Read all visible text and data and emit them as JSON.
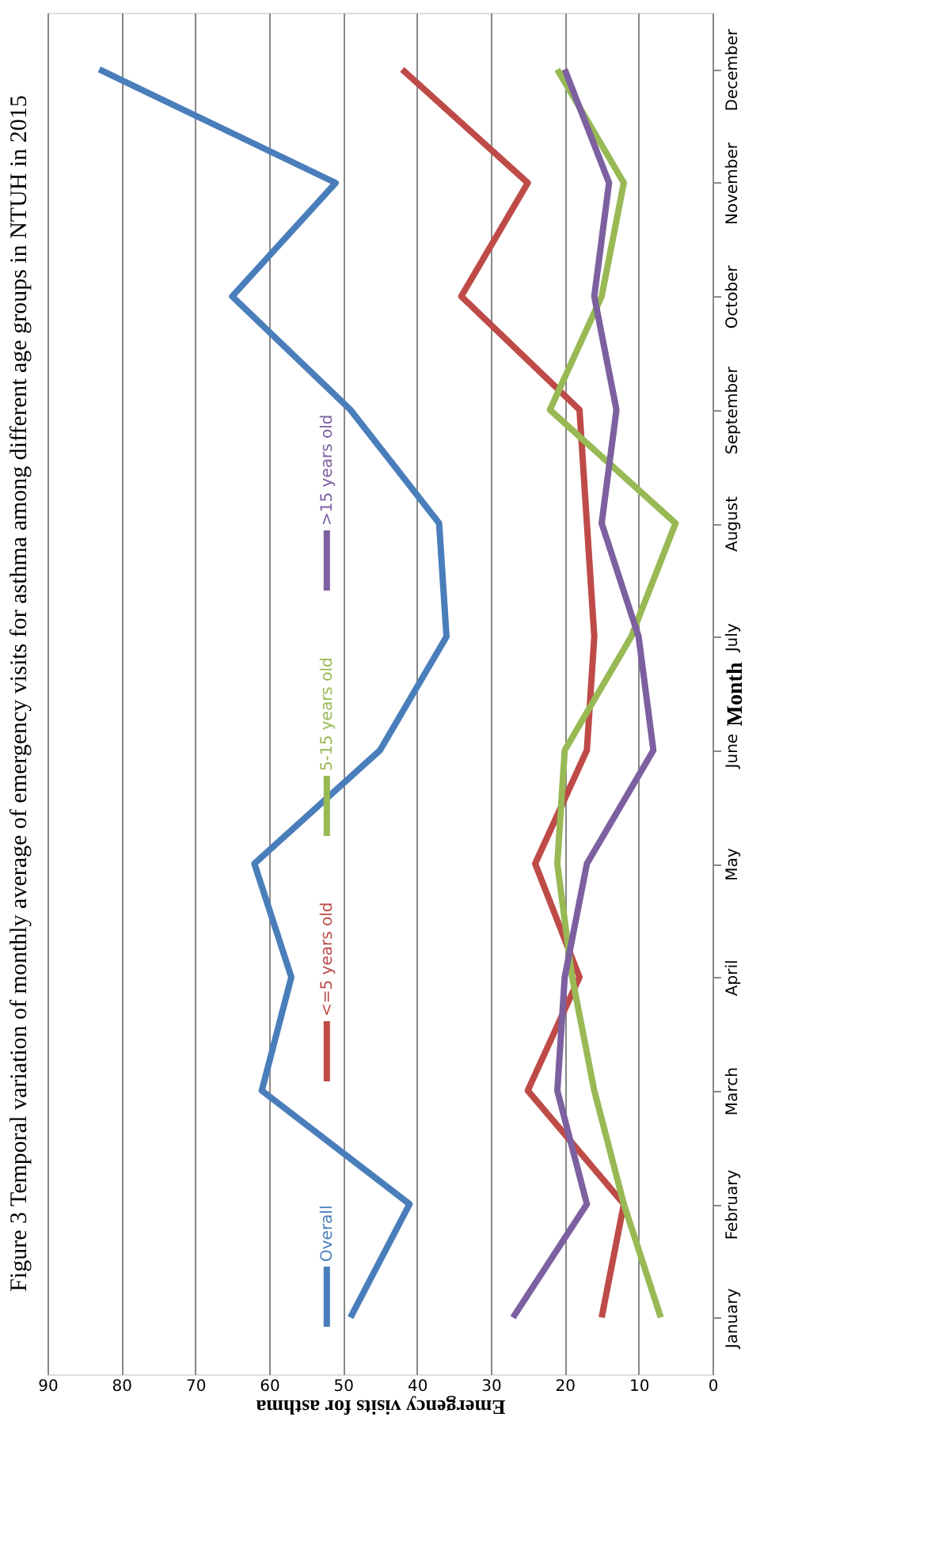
{
  "chart_data": {
    "type": "line",
    "title": "Figure 3 Temporal variation of monthly average of emergency visits for asthma among different age groups in NTUH in 2015",
    "orientation": "horizontal",
    "xlabel": "Emergency visits for asthma",
    "ylabel": "Month",
    "categories": [
      "December",
      "November",
      "October",
      "September",
      "August",
      "July",
      "June",
      "May",
      "April",
      "March",
      "February",
      "January"
    ],
    "series": [
      {
        "name": "Overall",
        "color": "#4a7ebb",
        "values": [
          83,
          51,
          65,
          49,
          37,
          36,
          45,
          62,
          57,
          61,
          41,
          49
        ]
      },
      {
        "name": "<=5 years old",
        "color": "#be4b48",
        "values": [
          42,
          25,
          34,
          18,
          17,
          16,
          17,
          24,
          18,
          25,
          12,
          15
        ]
      },
      {
        "name": "5-15 years old",
        "color": "#98b954",
        "values": [
          21,
          12,
          15,
          22,
          5,
          11,
          20,
          21,
          19,
          16,
          12,
          7
        ]
      },
      {
        "name": ">15 years old",
        "color": "#7d60a0",
        "values": [
          20,
          14,
          16,
          13,
          15,
          10,
          8,
          17,
          20,
          21,
          17,
          27
        ]
      }
    ],
    "xlim": [
      90,
      0
    ],
    "xticks": [
      0,
      10,
      20,
      30,
      40,
      50,
      60,
      70,
      80,
      90
    ],
    "grid": "x",
    "legend": "left",
    "marker": "none",
    "line_style": "solid"
  }
}
